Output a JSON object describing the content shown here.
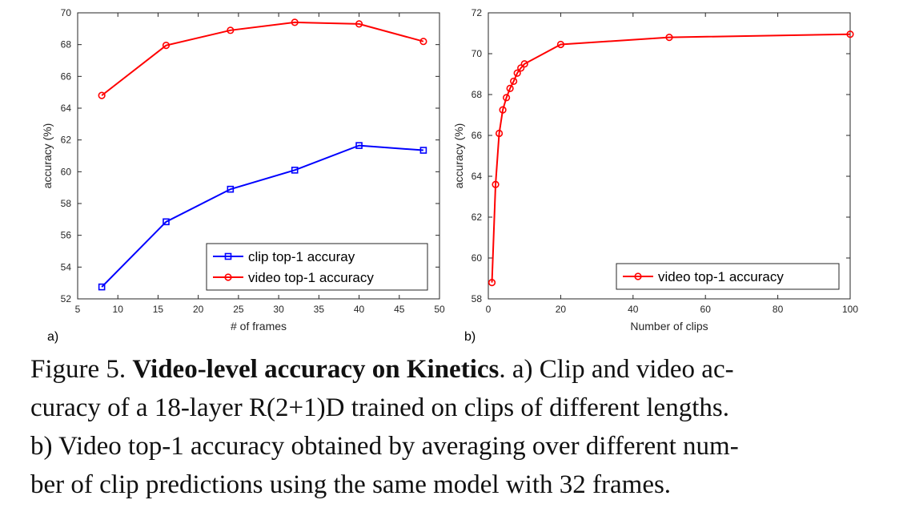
{
  "chart_data": [
    {
      "type": "line",
      "panel_label": "a)",
      "xlabel": "# of frames",
      "ylabel": "accuracy (%)",
      "xlim": [
        5,
        50
      ],
      "ylim": [
        52,
        70
      ],
      "xticks": [
        5,
        10,
        15,
        20,
        25,
        30,
        35,
        40,
        45,
        50
      ],
      "yticks": [
        52,
        54,
        56,
        58,
        60,
        62,
        64,
        66,
        68,
        70
      ],
      "x": [
        8,
        16,
        24,
        32,
        40,
        48
      ],
      "series": [
        {
          "name": "clip top-1 accuray",
          "color": "#0000ff",
          "marker": "square",
          "values": [
            52.75,
            56.85,
            58.9,
            60.1,
            61.65,
            61.35
          ]
        },
        {
          "name": "video top-1 accuracy",
          "color": "#ff0000",
          "marker": "circle",
          "values": [
            64.8,
            67.95,
            68.9,
            69.4,
            69.3,
            68.2
          ]
        }
      ],
      "legend": "bottom-right",
      "grid": false
    },
    {
      "type": "line",
      "panel_label": "b)",
      "xlabel": "Number of clips",
      "ylabel": "accuracy (%)",
      "xlim": [
        0,
        100
      ],
      "ylim": [
        58,
        72
      ],
      "xticks": [
        0,
        20,
        40,
        60,
        80,
        100
      ],
      "yticks": [
        58,
        60,
        62,
        64,
        66,
        68,
        70,
        72
      ],
      "x": [
        1,
        2,
        3,
        4,
        5,
        6,
        7,
        8,
        9,
        10,
        20,
        50,
        100
      ],
      "series": [
        {
          "name": "video top-1 accuracy",
          "color": "#ff0000",
          "marker": "circle",
          "values": [
            58.8,
            63.6,
            66.1,
            67.25,
            67.85,
            68.3,
            68.65,
            69.05,
            69.3,
            69.5,
            70.45,
            70.8,
            70.95
          ]
        }
      ],
      "legend": "bottom-right",
      "grid": false
    }
  ],
  "caption": {
    "prefix": "Figure 5. ",
    "bold": "Video-level accuracy on Kinetics",
    "line1_rest": ". a) Clip and video ac-",
    "line2": "curacy of a 18-layer R(2+1)D trained on clips of different lengths.",
    "line3": "b) Video top-1 accuracy obtained by averaging over different num-",
    "line4": "ber of clip predictions using the same model with 32 frames."
  }
}
